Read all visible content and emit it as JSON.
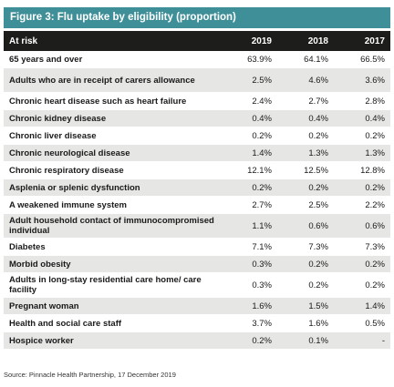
{
  "figure": {
    "title": "Figure 3: Flu uptake by eligibility (proportion)",
    "header": {
      "label": "At risk",
      "years": [
        "2019",
        "2018",
        "2017"
      ]
    },
    "rows": [
      {
        "label": "65 years and over",
        "values": [
          "63.9%",
          "64.1%",
          "66.5%"
        ]
      },
      {
        "label": "Adults who are in receipt of carers allowance",
        "values": [
          "2.5%",
          "4.6%",
          "3.6%"
        ]
      },
      {
        "label": "Chronic heart disease such as heart failure",
        "values": [
          "2.4%",
          "2.7%",
          "2.8%"
        ]
      },
      {
        "label": "Chronic kidney disease",
        "values": [
          "0.4%",
          "0.4%",
          "0.4%"
        ]
      },
      {
        "label": "Chronic liver disease",
        "values": [
          "0.2%",
          "0.2%",
          "0.2%"
        ]
      },
      {
        "label": "Chronic neurological disease",
        "values": [
          "1.4%",
          "1.3%",
          "1.3%"
        ]
      },
      {
        "label": "Chronic respiratory disease",
        "values": [
          "12.1%",
          "12.5%",
          "12.8%"
        ]
      },
      {
        "label": "Asplenia or splenic dysfunction",
        "values": [
          "0.2%",
          "0.2%",
          "0.2%"
        ]
      },
      {
        "label": "A weakened immune system",
        "values": [
          "2.7%",
          "2.5%",
          "2.2%"
        ]
      },
      {
        "label": "Adult household contact of immunocompromised individual",
        "values": [
          "1.1%",
          "0.6%",
          "0.6%"
        ]
      },
      {
        "label": "Diabetes",
        "values": [
          "7.1%",
          "7.3%",
          "7.3%"
        ]
      },
      {
        "label": "Morbid obesity",
        "values": [
          "0.3%",
          "0.2%",
          "0.2%"
        ]
      },
      {
        "label": "Adults in long-stay residential care home/ care facility",
        "values": [
          "0.3%",
          "0.2%",
          "0.2%"
        ]
      },
      {
        "label": "Pregnant woman",
        "values": [
          "1.6%",
          "1.5%",
          "1.4%"
        ]
      },
      {
        "label": "Health and social care staff",
        "values": [
          "3.7%",
          "1.6%",
          "0.5%"
        ]
      },
      {
        "label": "Hospice worker",
        "values": [
          "0.2%",
          "0.1%",
          "-"
        ]
      }
    ],
    "source": "Source: Pinnacle Health Partnership, 17 December 2019"
  },
  "colors": {
    "title_bar": "#3f8f98",
    "header_bar": "#1d1d1b",
    "stripe": "#e6e6e5"
  }
}
